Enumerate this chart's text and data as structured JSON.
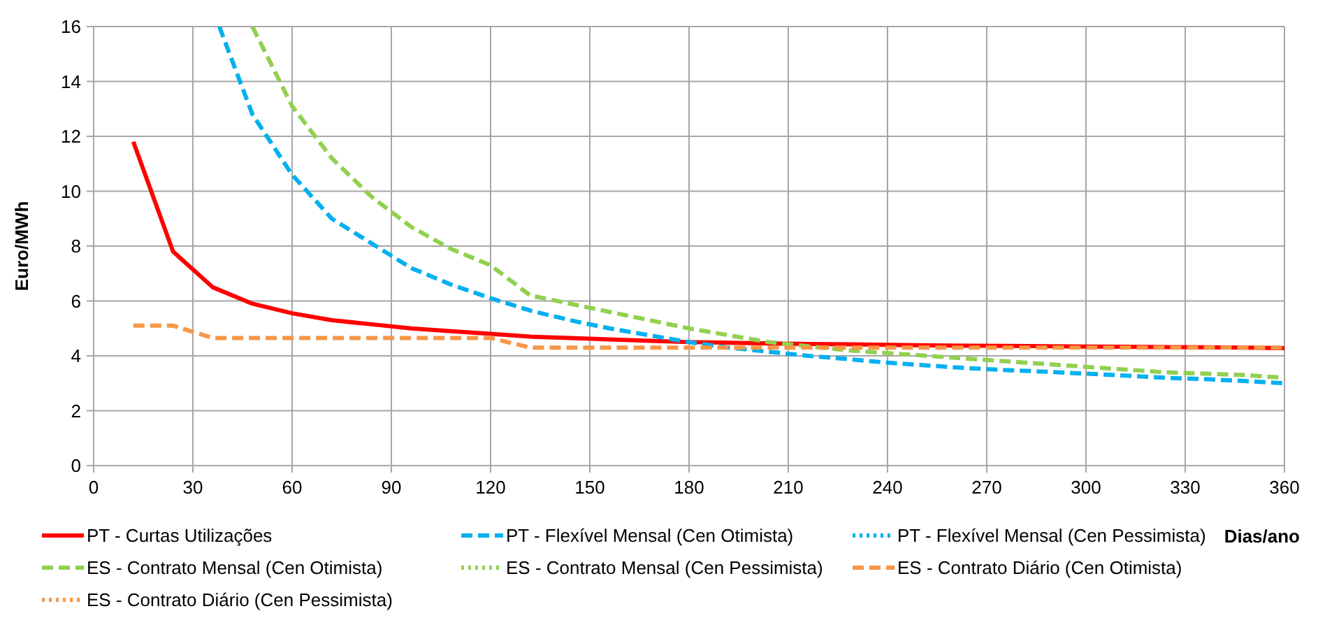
{
  "chart_data": {
    "type": "line",
    "xlabel": "Dias/ano",
    "ylabel": "Euro/MWh",
    "xlim": [
      0,
      360
    ],
    "ylim": [
      0,
      16
    ],
    "xticks": [
      0,
      30,
      60,
      90,
      120,
      150,
      180,
      210,
      240,
      270,
      300,
      330,
      360
    ],
    "yticks": [
      0,
      2,
      4,
      6,
      8,
      10,
      12,
      14,
      16
    ],
    "grid": true,
    "legend": "bottom",
    "marker": "none",
    "x": [
      12,
      24,
      36,
      48,
      60,
      72,
      84,
      96,
      108,
      120,
      132,
      144,
      156,
      168,
      180,
      192,
      204,
      216,
      228,
      240,
      252,
      264,
      276,
      288,
      300,
      312,
      324,
      336,
      348,
      360
    ],
    "series": [
      {
        "name": "PT - Curtas Utilizações",
        "color": "#ff0000",
        "line_style": "solid",
        "values": [
          11.8,
          7.8,
          6.5,
          5.9,
          5.55,
          5.3,
          5.15,
          5.0,
          4.9,
          4.8,
          4.7,
          4.65,
          4.6,
          4.55,
          4.5,
          4.48,
          4.45,
          4.43,
          4.42,
          4.4,
          4.38,
          4.37,
          4.36,
          4.35,
          4.34,
          4.33,
          4.32,
          4.31,
          4.3,
          4.28
        ]
      },
      {
        "name": "PT - Flexível Mensal (Cen Otimista)",
        "color": "#00b0f0",
        "line_style": "dashed",
        "x": [
          38,
          48,
          60,
          72,
          84,
          96,
          108,
          120,
          132,
          144,
          156,
          168,
          180,
          192,
          204,
          216,
          228,
          240,
          252,
          264,
          276,
          288,
          300,
          312,
          324,
          336,
          348,
          360
        ],
        "values": [
          16,
          12.8,
          10.6,
          9.0,
          8.1,
          7.2,
          6.6,
          6.1,
          5.65,
          5.3,
          5.0,
          4.75,
          4.5,
          4.3,
          4.15,
          4.0,
          3.88,
          3.75,
          3.65,
          3.55,
          3.48,
          3.42,
          3.35,
          3.28,
          3.2,
          3.15,
          3.08,
          3.0
        ]
      },
      {
        "name": "PT - Flexível Mensal (Cen Pessimista)",
        "color": "#00b0f0",
        "line_style": "dotted",
        "values": [
          null,
          null,
          null,
          null,
          null,
          null,
          null,
          null,
          null,
          null,
          null,
          null,
          null,
          null,
          null,
          null,
          null,
          null,
          null,
          null,
          null,
          null,
          null,
          null,
          null,
          null,
          null,
          null,
          null,
          null
        ]
      },
      {
        "name": "ES - Contrato Mensal (Cen Otimista)",
        "color": "#92d050",
        "line_style": "dashed",
        "x": [
          48,
          60,
          72,
          84,
          96,
          108,
          120,
          132,
          144,
          156,
          168,
          180,
          192,
          204,
          216,
          228,
          240,
          252,
          264,
          276,
          288,
          300,
          312,
          324,
          336,
          348,
          360
        ],
        "values": [
          16,
          13.1,
          11.2,
          9.8,
          8.7,
          7.9,
          7.3,
          6.2,
          5.9,
          5.6,
          5.3,
          5.0,
          4.75,
          4.5,
          4.35,
          4.2,
          4.1,
          4.0,
          3.9,
          3.8,
          3.7,
          3.6,
          3.5,
          3.4,
          3.35,
          3.3,
          3.2
        ]
      },
      {
        "name": "ES - Contrato Mensal (Cen Pessimista)",
        "color": "#92d050",
        "line_style": "dotted",
        "values": [
          null,
          null,
          null,
          null,
          null,
          null,
          null,
          null,
          null,
          null,
          null,
          null,
          null,
          null,
          null,
          null,
          null,
          null,
          null,
          null,
          null,
          null,
          null,
          null,
          null,
          null,
          null,
          null,
          null,
          null
        ]
      },
      {
        "name": "ES - Contrato Diário (Cen Otimista)",
        "color": "#f79646",
        "line_style": "dashed",
        "values": [
          5.1,
          5.1,
          4.65,
          4.65,
          4.65,
          4.65,
          4.65,
          4.65,
          4.65,
          4.65,
          4.3,
          4.3,
          4.3,
          4.3,
          4.3,
          4.3,
          4.3,
          4.3,
          4.3,
          4.3,
          4.3,
          4.3,
          4.3,
          4.3,
          4.3,
          4.3,
          4.3,
          4.3,
          4.3,
          4.3
        ]
      },
      {
        "name": "ES - Contrato Diário (Cen Pessimista)",
        "color": "#f79646",
        "line_style": "dotted",
        "values": [
          null,
          null,
          null,
          null,
          null,
          null,
          null,
          null,
          null,
          null,
          null,
          null,
          null,
          null,
          null,
          null,
          null,
          null,
          null,
          null,
          null,
          null,
          null,
          null,
          null,
          null,
          null,
          null,
          null,
          null
        ]
      }
    ]
  }
}
